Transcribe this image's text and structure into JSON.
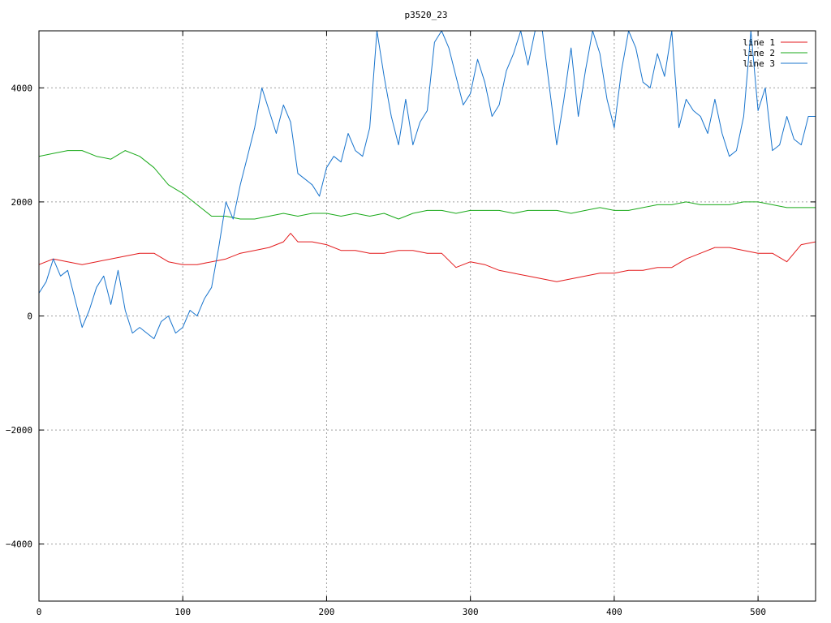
{
  "chart_data": {
    "type": "line",
    "title": "p3520_23",
    "xlabel": "",
    "ylabel": "",
    "xlim": [
      0,
      540
    ],
    "ylim": [
      -5000,
      5000
    ],
    "xticks": [
      0,
      100,
      200,
      300,
      400,
      500
    ],
    "yticks": [
      -4000,
      -2000,
      0,
      2000,
      4000
    ],
    "ytick_labels": [
      "−4000",
      "−2000",
      "0",
      "2000",
      "4000"
    ],
    "grid": true,
    "legend_position": "top-right",
    "series": [
      {
        "name": "line 1",
        "color": "#e31a1c",
        "x": [
          0,
          10,
          20,
          30,
          40,
          50,
          60,
          70,
          80,
          90,
          100,
          110,
          120,
          130,
          140,
          150,
          160,
          170,
          175,
          180,
          190,
          200,
          210,
          220,
          230,
          240,
          250,
          260,
          270,
          280,
          290,
          300,
          310,
          320,
          330,
          340,
          350,
          360,
          370,
          380,
          390,
          400,
          410,
          420,
          430,
          440,
          450,
          460,
          470,
          480,
          490,
          500,
          510,
          520,
          530,
          540
        ],
        "y": [
          900,
          1000,
          950,
          900,
          950,
          1000,
          1050,
          1100,
          1100,
          950,
          900,
          900,
          950,
          1000,
          1100,
          1150,
          1200,
          1300,
          1450,
          1300,
          1300,
          1250,
          1150,
          1150,
          1100,
          1100,
          1150,
          1150,
          1100,
          1100,
          850,
          950,
          900,
          800,
          750,
          700,
          650,
          600,
          650,
          700,
          750,
          750,
          800,
          800,
          850,
          850,
          1000,
          1100,
          1200,
          1200,
          1150,
          1100,
          1100,
          950,
          1250,
          1300
        ]
      },
      {
        "name": "line 2",
        "color": "#1aaa1a",
        "x": [
          0,
          10,
          20,
          30,
          40,
          50,
          60,
          70,
          80,
          90,
          100,
          110,
          120,
          130,
          140,
          150,
          160,
          170,
          180,
          190,
          200,
          210,
          220,
          230,
          240,
          250,
          260,
          270,
          280,
          290,
          300,
          310,
          320,
          330,
          340,
          350,
          360,
          370,
          380,
          390,
          400,
          410,
          420,
          430,
          440,
          450,
          460,
          470,
          480,
          490,
          500,
          510,
          520,
          530,
          540
        ],
        "y": [
          2800,
          2850,
          2900,
          2900,
          2800,
          2750,
          2900,
          2800,
          2600,
          2300,
          2150,
          1950,
          1750,
          1750,
          1700,
          1700,
          1750,
          1800,
          1750,
          1800,
          1800,
          1750,
          1800,
          1750,
          1800,
          1700,
          1800,
          1850,
          1850,
          1800,
          1850,
          1850,
          1850,
          1800,
          1850,
          1850,
          1850,
          1800,
          1850,
          1900,
          1850,
          1850,
          1900,
          1950,
          1950,
          2000,
          1950,
          1950,
          1950,
          2000,
          2000,
          1950,
          1900,
          1900,
          1900
        ]
      },
      {
        "name": "line 3",
        "color": "#1874cd",
        "x": [
          0,
          5,
          10,
          15,
          20,
          25,
          30,
          35,
          40,
          45,
          50,
          55,
          60,
          65,
          70,
          75,
          80,
          85,
          90,
          95,
          100,
          105,
          110,
          115,
          120,
          125,
          130,
          135,
          140,
          145,
          150,
          155,
          160,
          165,
          170,
          175,
          180,
          185,
          190,
          195,
          200,
          205,
          210,
          215,
          220,
          225,
          230,
          235,
          240,
          245,
          250,
          255,
          260,
          265,
          270,
          275,
          280,
          285,
          290,
          295,
          300,
          305,
          310,
          315,
          320,
          325,
          330,
          335,
          340,
          345,
          350,
          355,
          360,
          365,
          370,
          375,
          380,
          385,
          390,
          395,
          400,
          405,
          410,
          415,
          420,
          425,
          430,
          435,
          440,
          445,
          450,
          455,
          460,
          465,
          470,
          475,
          480,
          485,
          490,
          495,
          500,
          505,
          510,
          515,
          520,
          525,
          530,
          535,
          540
        ],
        "y": [
          400,
          600,
          1000,
          700,
          800,
          300,
          -200,
          100,
          500,
          700,
          200,
          800,
          100,
          -300,
          -200,
          -300,
          -400,
          -100,
          0,
          -300,
          -200,
          100,
          0,
          300,
          500,
          1200,
          2000,
          1700,
          2300,
          2800,
          3300,
          4000,
          3600,
          3200,
          3700,
          3400,
          2500,
          2400,
          2300,
          2100,
          2600,
          2800,
          2700,
          3200,
          2900,
          2800,
          3300,
          5000,
          4200,
          3500,
          3000,
          3800,
          3000,
          3400,
          3600,
          4800,
          5000,
          4700,
          4200,
          3700,
          3900,
          4500,
          4100,
          3500,
          3700,
          4300,
          4600,
          5000,
          4400,
          5000,
          5000,
          4000,
          3000,
          3800,
          4700,
          3500,
          4300,
          5000,
          4600,
          3800,
          3300,
          4300,
          5000,
          4700,
          4100,
          4000,
          4600,
          4200,
          5000,
          3300,
          3800,
          3600,
          3500,
          3200,
          3800,
          3200,
          2800,
          2900,
          3500,
          5000,
          3600,
          4000,
          2900,
          3000,
          3500,
          3100,
          3000,
          3500,
          3500
        ]
      }
    ]
  }
}
